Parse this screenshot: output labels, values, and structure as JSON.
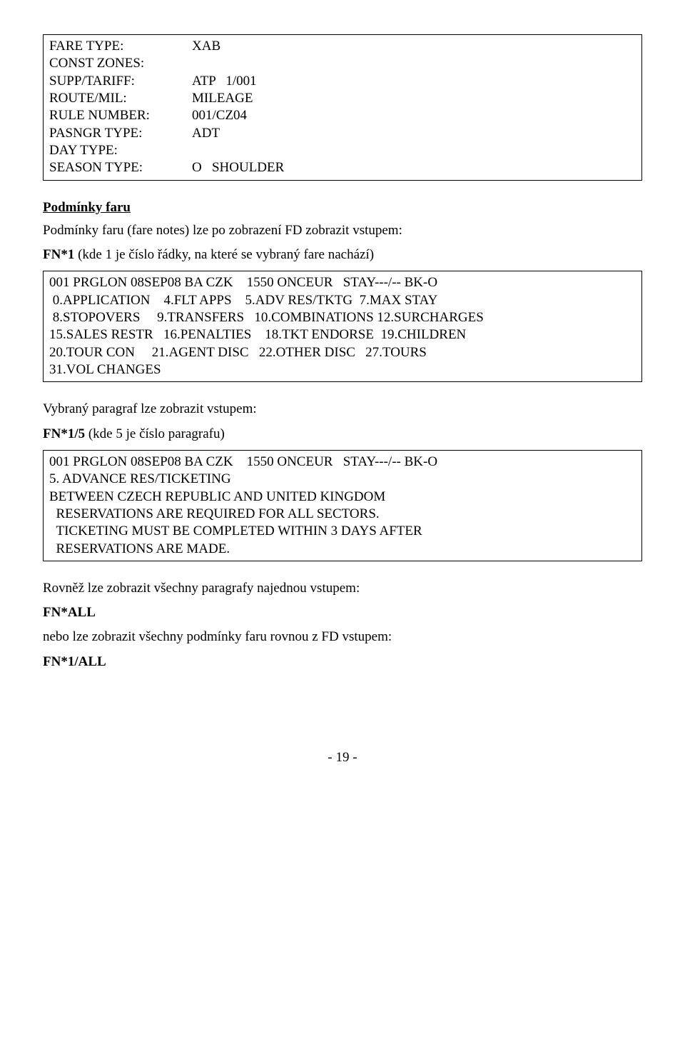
{
  "box1": {
    "rows": [
      {
        "label": "FARE TYPE:",
        "value": "XAB"
      },
      {
        "label": "CONST ZONES:",
        "value": ""
      },
      {
        "label": "SUPP/TARIFF:",
        "value": "ATP   1/001"
      },
      {
        "label": "ROUTE/MIL:",
        "value": "MILEAGE"
      },
      {
        "label": "RULE NUMBER:",
        "value": "001/CZ04"
      },
      {
        "label": "PASNGR TYPE:",
        "value": "ADT"
      },
      {
        "label": "DAY TYPE:",
        "value": ""
      },
      {
        "label": "SEASON TYPE:",
        "value": "O   SHOULDER"
      }
    ]
  },
  "section1": {
    "heading": "Podmínky faru",
    "intro": "Podmínky faru (fare notes) lze po zobrazení FD zobrazit vstupem:",
    "cmd_prefix": "FN*1",
    "cmd_suffix": " (kde 1 je číslo řádky, na které se vybraný fare nachází)"
  },
  "box2": {
    "text": "001 PRGLON 08SEP08 BA CZK    1550 ONCEUR   STAY---/-- BK-O\n 0.APPLICATION    4.FLT APPS    5.ADV RES/TKTG  7.MAX STAY\n 8.STOPOVERS     9.TRANSFERS   10.COMBINATIONS 12.SURCHARGES\n15.SALES RESTR   16.PENALTIES    18.TKT ENDORSE  19.CHILDREN\n20.TOUR CON     21.AGENT DISC   22.OTHER DISC   27.TOURS\n31.VOL CHANGES"
  },
  "section2": {
    "intro": "Vybraný paragraf lze zobrazit vstupem:",
    "cmd_prefix": "FN*1/5",
    "cmd_suffix": " (kde 5 je číslo paragrafu)"
  },
  "box3": {
    "text": "001 PRGLON 08SEP08 BA CZK    1550 ONCEUR   STAY---/-- BK-O\n5. ADVANCE RES/TICKETING\nBETWEEN CZECH REPUBLIC AND UNITED KINGDOM\n  RESERVATIONS ARE REQUIRED FOR ALL SECTORS.\n  TICKETING MUST BE COMPLETED WITHIN 3 DAYS AFTER\n  RESERVATIONS ARE MADE."
  },
  "section3": {
    "line1": "Rovněž lze zobrazit všechny paragrafy najednou vstupem:",
    "cmd1": "FN*ALL",
    "line2": "nebo lze zobrazit všechny podmínky faru rovnou z FD vstupem:",
    "cmd2": "FN*1/ALL"
  },
  "footer": {
    "page": "- 19 -"
  }
}
